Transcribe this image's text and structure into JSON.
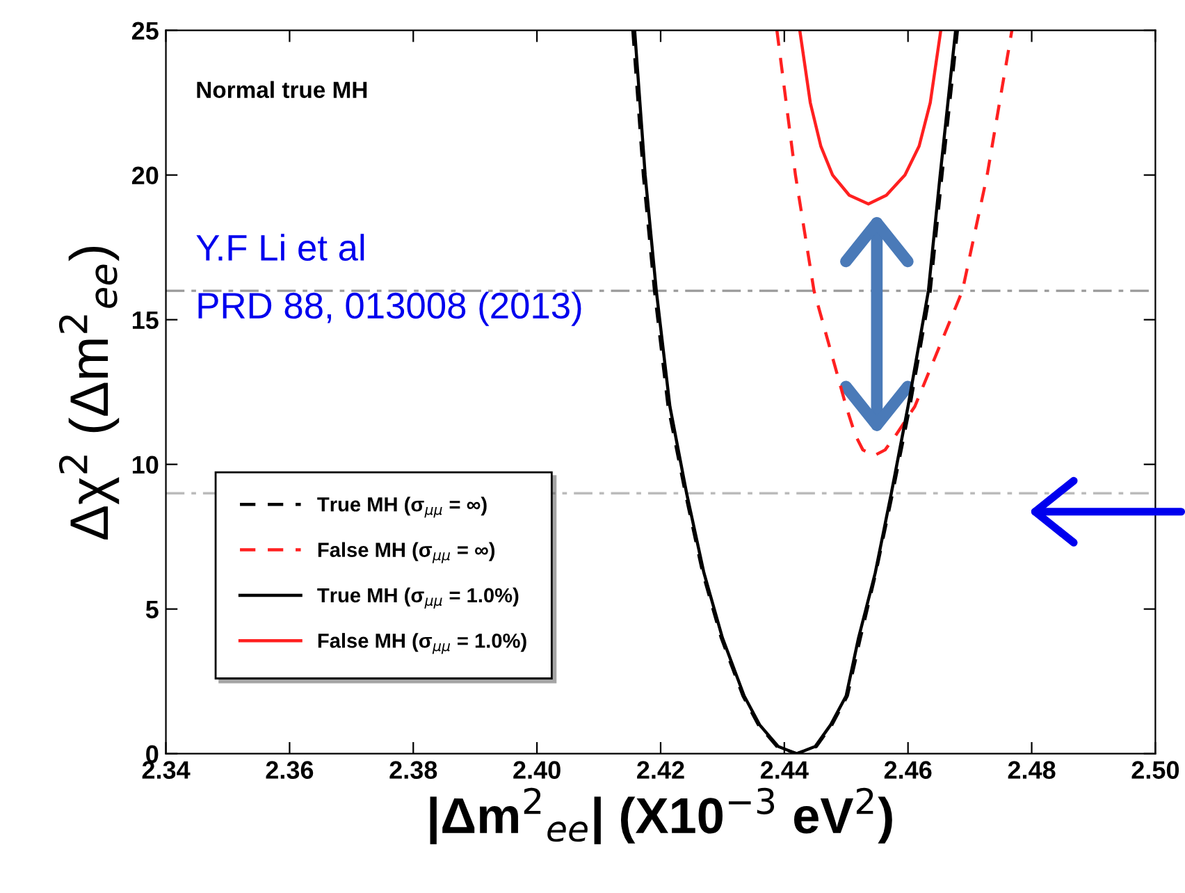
{
  "chart_data": {
    "type": "line",
    "xlabel": "|Δm$^{2}$$_{ee}$| (X10$^{−3}$ eV$^{2}$)",
    "ylabel": "Δχ$^{2}$ (Δm$^{2}$$_{ee}$)",
    "xlim": [
      2.34,
      2.5
    ],
    "xticks": [
      {
        "value": 2.34,
        "label": "2.34"
      },
      {
        "value": 2.36,
        "label": "2.36"
      },
      {
        "value": 2.38,
        "label": "2.38"
      },
      {
        "value": 2.4,
        "label": "2.40"
      },
      {
        "value": 2.42,
        "label": "2.42"
      },
      {
        "value": 2.44,
        "label": "2.44"
      },
      {
        "value": 2.46,
        "label": "2.46"
      },
      {
        "value": 2.48,
        "label": "2.48"
      },
      {
        "value": 2.5,
        "label": "2.50"
      }
    ],
    "ylim": [
      0,
      25
    ],
    "yticks": [
      0,
      5,
      10,
      15,
      20,
      25
    ],
    "grid": false,
    "legend": "bottom left",
    "marker": "none",
    "series": [
      {
        "name": "True MH (σ$_{μμ}$ = ∞)",
        "color": "#000000",
        "line_style": "dashed",
        "x": [
          2.4155,
          2.4172,
          2.419,
          2.4212,
          2.424,
          2.4268,
          2.4298,
          2.4333,
          2.4358,
          2.4388,
          2.442,
          2.4452,
          2.4477,
          2.4502,
          2.4523,
          2.4548,
          2.4575,
          2.4603,
          2.4636,
          2.4655,
          2.468
        ],
        "values": [
          25,
          20,
          16,
          12,
          9,
          6.25,
          4,
          2,
          1,
          0.25,
          0,
          0.25,
          1,
          2,
          4,
          6.25,
          9,
          12,
          16,
          20,
          25
        ]
      },
      {
        "name": "False MH (σ$_{μμ}$ = ∞)",
        "color": "#ff2020",
        "line_style": "dashed",
        "x": [
          2.4388,
          2.4418,
          2.4448,
          2.45,
          2.4515,
          2.4527,
          2.4545,
          2.4563,
          2.458,
          2.4611,
          2.4688,
          2.4728,
          2.4768
        ],
        "values": [
          25,
          20,
          16,
          12,
          11,
          10.5,
          10.3,
          10.5,
          11,
          12,
          16,
          20,
          25
        ]
      },
      {
        "name": "True MH (σ$_{μμ}$ = 1.0%)",
        "color": "#000000",
        "line_style": "solid",
        "x": [
          2.4158,
          2.4175,
          2.4193,
          2.4215,
          2.4242,
          2.427,
          2.43,
          2.4335,
          2.436,
          2.439,
          2.442,
          2.445,
          2.4475,
          2.45,
          2.452,
          2.4547,
          2.4573,
          2.46,
          2.4633,
          2.4652,
          2.4677
        ],
        "values": [
          25,
          20,
          16,
          12,
          9,
          6.25,
          4,
          2,
          1,
          0.25,
          0,
          0.25,
          1,
          2,
          4,
          6.25,
          9,
          12,
          16,
          20,
          25
        ]
      },
      {
        "name": "False MH (σ$_{μμ}$ = 1.0%)",
        "color": "#ff2020",
        "line_style": "solid",
        "x": [
          2.4425,
          2.4442,
          2.4459,
          2.4478,
          2.4505,
          2.4536,
          2.4565,
          2.4595,
          2.4618,
          2.4636,
          2.4653
        ],
        "values": [
          25,
          22.5,
          21,
          20,
          19.3,
          19,
          19.3,
          20,
          21,
          22.5,
          25
        ]
      }
    ],
    "ref_lines": [
      {
        "axis": "y",
        "value": 16,
        "color": "#999999",
        "line_style": "dashdot"
      },
      {
        "axis": "y",
        "value": 9,
        "color": "#bbbbbb",
        "line_style": "dashdot"
      }
    ],
    "annotations": [
      "Normal true MH",
      "Y.F Li et al",
      "PRD 88, 013008 (2013)"
    ]
  }
}
